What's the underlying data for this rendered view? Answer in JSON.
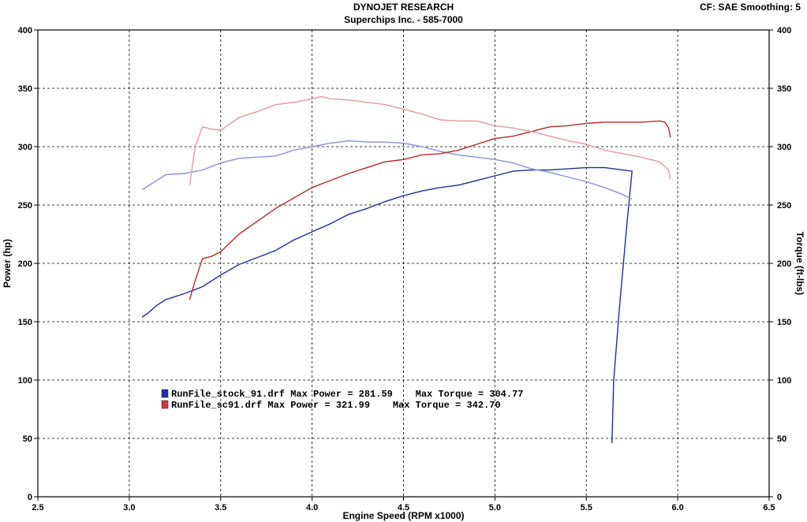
{
  "header": {
    "title": "DYNOJET RESEARCH",
    "subtitle": "Superchips Inc. - 585-7000",
    "cf_info": "CF: SAE  Smoothing: 5"
  },
  "chart_data": {
    "type": "line",
    "xlabel": "Engine Speed (RPM x1000)",
    "ylabel_left": "Power (hp)",
    "ylabel_right": "Torque (ft-lbs)",
    "xlim": [
      2.5,
      6.5
    ],
    "ylim": [
      0,
      400
    ],
    "x_ticks": [
      "2.5",
      "3.0",
      "3.5",
      "4.0",
      "4.5",
      "5.0",
      "5.5",
      "6.0",
      "6.5"
    ],
    "y_ticks": [
      "0",
      "50",
      "100",
      "150",
      "200",
      "250",
      "300",
      "350",
      "400"
    ],
    "grid": true,
    "legend": [
      {
        "label": "RunFile_stock_91.drf Max Power = 281.59    Max Torque = 304.77",
        "color": "#1f2bb0"
      },
      {
        "label": "RunFile_sc91.drf Max Power = 321.99    Max Torque = 342.70",
        "color": "#d23a3a"
      }
    ],
    "series": [
      {
        "name": "RunFile_stock_91.drf",
        "measure": "power",
        "color": "#1f2f9e",
        "x": [
          3.07,
          3.1,
          3.15,
          3.2,
          3.3,
          3.4,
          3.5,
          3.6,
          3.7,
          3.8,
          3.9,
          4.0,
          4.1,
          4.2,
          4.3,
          4.4,
          4.5,
          4.6,
          4.7,
          4.8,
          4.9,
          5.0,
          5.1,
          5.2,
          5.3,
          5.4,
          5.5,
          5.6,
          5.7,
          5.75,
          5.72,
          5.68,
          5.65,
          5.64
        ],
        "y": [
          154,
          157,
          164,
          169,
          174,
          180,
          190,
          199,
          205,
          211,
          220,
          227,
          234,
          242,
          247,
          253,
          258,
          262,
          265,
          267,
          271,
          275,
          279,
          280,
          280,
          281,
          282,
          282,
          280,
          279,
          230,
          160,
          100,
          46
        ]
      },
      {
        "name": "RunFile_stock_91.drf",
        "measure": "torque",
        "color": "#8a92d8",
        "x": [
          3.07,
          3.1,
          3.2,
          3.3,
          3.4,
          3.5,
          3.6,
          3.7,
          3.8,
          3.9,
          4.0,
          4.1,
          4.2,
          4.3,
          4.4,
          4.5,
          4.6,
          4.7,
          4.8,
          4.9,
          5.0,
          5.1,
          5.2,
          5.3,
          5.4,
          5.5,
          5.6,
          5.7,
          5.75
        ],
        "y": [
          263,
          266,
          276,
          277,
          280,
          286,
          290,
          291,
          292,
          297,
          300,
          303,
          305,
          304,
          304,
          303,
          300,
          296,
          293,
          291,
          289,
          286,
          281,
          278,
          274,
          270,
          265,
          259,
          255
        ]
      },
      {
        "name": "RunFile_sc91.drf",
        "measure": "power",
        "color": "#b52a2a",
        "x": [
          3.33,
          3.36,
          3.4,
          3.45,
          3.5,
          3.6,
          3.7,
          3.8,
          3.9,
          4.0,
          4.1,
          4.2,
          4.3,
          4.4,
          4.5,
          4.6,
          4.7,
          4.8,
          4.9,
          5.0,
          5.1,
          5.2,
          5.3,
          5.4,
          5.5,
          5.6,
          5.7,
          5.8,
          5.9,
          5.93,
          5.95,
          5.96
        ],
        "y": [
          169,
          185,
          204,
          206,
          210,
          225,
          236,
          247,
          256,
          265,
          271,
          277,
          282,
          287,
          289,
          293,
          294,
          297,
          302,
          307,
          309,
          313,
          317,
          318,
          320,
          321,
          321,
          321,
          322,
          321,
          316,
          308
        ]
      },
      {
        "name": "RunFile_sc91.drf",
        "measure": "torque",
        "color": "#e39a9a",
        "x": [
          3.33,
          3.36,
          3.4,
          3.45,
          3.5,
          3.6,
          3.7,
          3.8,
          3.9,
          4.0,
          4.05,
          4.1,
          4.2,
          4.3,
          4.4,
          4.5,
          4.6,
          4.7,
          4.8,
          4.9,
          5.0,
          5.1,
          5.2,
          5.3,
          5.4,
          5.5,
          5.6,
          5.7,
          5.8,
          5.9,
          5.93,
          5.95,
          5.96
        ],
        "y": [
          267,
          300,
          317,
          315,
          314,
          325,
          330,
          336,
          338,
          341,
          343,
          341,
          340,
          338,
          336,
          332,
          328,
          323,
          322,
          322,
          318,
          316,
          313,
          309,
          305,
          302,
          297,
          294,
          291,
          287,
          283,
          280,
          272
        ]
      }
    ]
  }
}
